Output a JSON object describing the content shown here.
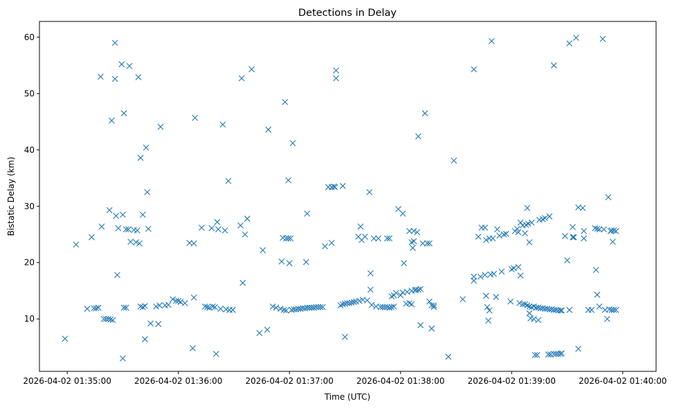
{
  "chart_data": {
    "type": "scatter",
    "title": "Detections in Delay",
    "xlabel": "Time (UTC)",
    "ylabel": "Bistatic Delay (km)",
    "marker": "x",
    "color": "#1f77b4",
    "xlim": [
      -0.25,
      5.3
    ],
    "ylim": [
      0.7,
      62.8
    ],
    "xticks": [
      {
        "value": 0,
        "label": "2026-04-02 01:35:00"
      },
      {
        "value": 1,
        "label": "2026-04-02 01:36:00"
      },
      {
        "value": 2,
        "label": "2026-04-02 01:37:00"
      },
      {
        "value": 3,
        "label": "2026-04-02 01:38:00"
      },
      {
        "value": 4,
        "label": "2026-04-02 01:39:00"
      },
      {
        "value": 5,
        "label": "2026-04-02 01:40:00"
      }
    ],
    "yticks": [
      {
        "value": 10,
        "label": "10"
      },
      {
        "value": 20,
        "label": "20"
      },
      {
        "value": 30,
        "label": "30"
      },
      {
        "value": 40,
        "label": "40"
      },
      {
        "value": 50,
        "label": "50"
      },
      {
        "value": 60,
        "label": "60"
      }
    ],
    "x_units": "minutes after 2026-04-02 01:35:00 UTC",
    "points": [
      [
        -0.02,
        6.5
      ],
      [
        0.08,
        23.2
      ],
      [
        0.18,
        11.8
      ],
      [
        0.22,
        24.5
      ],
      [
        0.24,
        11.9
      ],
      [
        0.26,
        11.9
      ],
      [
        0.28,
        12.0
      ],
      [
        0.3,
        53.0
      ],
      [
        0.31,
        26.4
      ],
      [
        0.33,
        10.0
      ],
      [
        0.35,
        10.0
      ],
      [
        0.37,
        10.0
      ],
      [
        0.38,
        29.3
      ],
      [
        0.39,
        9.9
      ],
      [
        0.4,
        45.2
      ],
      [
        0.41,
        9.8
      ],
      [
        0.43,
        59.0
      ],
      [
        0.43,
        52.6
      ],
      [
        0.44,
        28.3
      ],
      [
        0.45,
        17.8
      ],
      [
        0.46,
        26.1
      ],
      [
        0.49,
        55.2
      ],
      [
        0.5,
        28.5
      ],
      [
        0.51,
        46.5
      ],
      [
        0.5,
        3.0
      ],
      [
        0.51,
        12.0
      ],
      [
        0.53,
        12.0
      ],
      [
        0.53,
        25.9
      ],
      [
        0.55,
        25.9
      ],
      [
        0.56,
        54.9
      ],
      [
        0.57,
        23.7
      ],
      [
        0.6,
        25.8
      ],
      [
        0.62,
        23.6
      ],
      [
        0.63,
        25.7
      ],
      [
        0.65,
        23.4
      ],
      [
        0.64,
        52.9
      ],
      [
        0.66,
        38.6
      ],
      [
        0.66,
        12.2
      ],
      [
        0.68,
        12.1
      ],
      [
        0.68,
        28.5
      ],
      [
        0.7,
        12.3
      ],
      [
        0.7,
        6.4
      ],
      [
        0.72,
        32.5
      ],
      [
        0.71,
        40.4
      ],
      [
        0.73,
        26.0
      ],
      [
        0.75,
        9.2
      ],
      [
        0.8,
        12.2
      ],
      [
        0.83,
        12.4
      ],
      [
        0.82,
        9.1
      ],
      [
        0.84,
        44.1
      ],
      [
        0.88,
        12.4
      ],
      [
        0.91,
        12.5
      ],
      [
        0.95,
        13.5
      ],
      [
        0.98,
        13.2
      ],
      [
        1.0,
        13.2
      ],
      [
        1.02,
        13.0
      ],
      [
        1.06,
        12.8
      ],
      [
        1.1,
        23.5
      ],
      [
        1.14,
        23.4
      ],
      [
        1.13,
        4.8
      ],
      [
        1.14,
        13.8
      ],
      [
        1.15,
        45.7
      ],
      [
        1.21,
        26.2
      ],
      [
        1.24,
        12.2
      ],
      [
        1.26,
        12.1
      ],
      [
        1.28,
        12.0
      ],
      [
        1.3,
        26.1
      ],
      [
        1.31,
        12.2
      ],
      [
        1.33,
        12.1
      ],
      [
        1.34,
        3.8
      ],
      [
        1.35,
        27.2
      ],
      [
        1.36,
        25.9
      ],
      [
        1.38,
        11.8
      ],
      [
        1.4,
        44.5
      ],
      [
        1.42,
        25.7
      ],
      [
        1.43,
        11.7
      ],
      [
        1.45,
        34.5
      ],
      [
        1.46,
        11.6
      ],
      [
        1.49,
        11.6
      ],
      [
        1.56,
        26.6
      ],
      [
        1.57,
        52.7
      ],
      [
        1.58,
        16.4
      ],
      [
        1.6,
        25.0
      ],
      [
        1.62,
        27.8
      ],
      [
        1.66,
        54.3
      ],
      [
        1.73,
        7.5
      ],
      [
        1.76,
        22.2
      ],
      [
        1.8,
        8.1
      ],
      [
        1.81,
        43.6
      ],
      [
        1.85,
        12.2
      ],
      [
        1.88,
        12.0
      ],
      [
        1.92,
        11.8
      ],
      [
        1.93,
        20.2
      ],
      [
        1.95,
        11.6
      ],
      [
        1.97,
        11.5
      ],
      [
        1.94,
        24.4
      ],
      [
        1.96,
        48.5
      ],
      [
        1.97,
        24.3
      ],
      [
        1.99,
        24.3
      ],
      [
        1.99,
        34.6
      ],
      [
        2.01,
        24.3
      ],
      [
        2.0,
        19.9
      ],
      [
        2.02,
        11.6
      ],
      [
        2.04,
        11.7
      ],
      [
        2.03,
        41.2
      ],
      [
        2.06,
        11.7
      ],
      [
        2.08,
        11.8
      ],
      [
        2.1,
        11.8
      ],
      [
        2.12,
        11.9
      ],
      [
        2.14,
        11.9
      ],
      [
        2.16,
        12.0
      ],
      [
        2.15,
        20.1
      ],
      [
        2.16,
        28.7
      ],
      [
        2.18,
        12.0
      ],
      [
        2.2,
        12.0
      ],
      [
        2.22,
        12.0
      ],
      [
        2.24,
        12.1
      ],
      [
        2.26,
        12.1
      ],
      [
        2.28,
        12.1
      ],
      [
        2.3,
        12.1
      ],
      [
        2.32,
        22.9
      ],
      [
        2.35,
        33.4
      ],
      [
        2.38,
        23.5
      ],
      [
        2.38,
        33.4
      ],
      [
        2.4,
        33.5
      ],
      [
        2.41,
        33.4
      ],
      [
        2.42,
        54.1
      ],
      [
        2.42,
        52.7
      ],
      [
        2.46,
        12.4
      ],
      [
        2.48,
        12.6
      ],
      [
        2.5,
        12.7
      ],
      [
        2.48,
        33.6
      ],
      [
        2.5,
        6.8
      ],
      [
        2.52,
        12.8
      ],
      [
        2.54,
        12.8
      ],
      [
        2.56,
        12.9
      ],
      [
        2.58,
        13.0
      ],
      [
        2.6,
        13.1
      ],
      [
        2.62,
        24.6
      ],
      [
        2.63,
        13.2
      ],
      [
        2.65,
        24.0
      ],
      [
        2.64,
        26.4
      ],
      [
        2.66,
        13.4
      ],
      [
        2.68,
        24.6
      ],
      [
        2.7,
        13.3
      ],
      [
        2.72,
        32.5
      ],
      [
        2.73,
        15.2
      ],
      [
        2.73,
        18.1
      ],
      [
        2.74,
        12.5
      ],
      [
        2.76,
        24.3
      ],
      [
        2.78,
        12.2
      ],
      [
        2.8,
        24.3
      ],
      [
        2.82,
        12.1
      ],
      [
        2.84,
        12.1
      ],
      [
        2.86,
        12.1
      ],
      [
        2.88,
        24.3
      ],
      [
        2.88,
        12.1
      ],
      [
        2.9,
        24.3
      ],
      [
        2.9,
        12.0
      ],
      [
        2.92,
        12.1
      ],
      [
        2.94,
        12.2
      ],
      [
        2.92,
        14.0
      ],
      [
        2.94,
        14.2
      ],
      [
        2.96,
        14.6
      ],
      [
        2.98,
        29.5
      ],
      [
        3.0,
        14.2
      ],
      [
        3.02,
        14.7
      ],
      [
        3.02,
        28.7
      ],
      [
        3.03,
        19.9
      ],
      [
        3.05,
        12.7
      ],
      [
        3.06,
        14.8
      ],
      [
        3.08,
        12.8
      ],
      [
        3.08,
        25.6
      ],
      [
        3.1,
        15.0
      ],
      [
        3.1,
        12.6
      ],
      [
        3.1,
        23.6
      ],
      [
        3.11,
        22.6
      ],
      [
        3.12,
        25.6
      ],
      [
        3.12,
        23.8
      ],
      [
        3.13,
        15.1
      ],
      [
        3.14,
        15.2
      ],
      [
        3.15,
        25.4
      ],
      [
        3.16,
        15.2
      ],
      [
        3.18,
        15.3
      ],
      [
        3.16,
        42.4
      ],
      [
        3.18,
        8.9
      ],
      [
        3.2,
        23.4
      ],
      [
        3.22,
        46.5
      ],
      [
        3.24,
        23.4
      ],
      [
        3.26,
        23.4
      ],
      [
        3.26,
        13.1
      ],
      [
        3.28,
        12.4
      ],
      [
        3.28,
        8.3
      ],
      [
        3.3,
        12.1
      ],
      [
        3.3,
        12.4
      ],
      [
        3.43,
        3.3
      ],
      [
        3.48,
        38.1
      ],
      [
        3.56,
        13.5
      ],
      [
        3.66,
        54.3
      ],
      [
        3.66,
        17.5
      ],
      [
        3.66,
        16.8
      ],
      [
        3.7,
        24.6
      ],
      [
        3.72,
        17.5
      ],
      [
        3.73,
        26.2
      ],
      [
        3.76,
        17.8
      ],
      [
        3.76,
        26.2
      ],
      [
        3.77,
        24.0
      ],
      [
        3.77,
        14.1
      ],
      [
        3.78,
        12.1
      ],
      [
        3.79,
        9.7
      ],
      [
        3.8,
        24.3
      ],
      [
        3.8,
        11.5
      ],
      [
        3.81,
        17.9
      ],
      [
        3.82,
        59.3
      ],
      [
        3.83,
        24.3
      ],
      [
        3.84,
        18.0
      ],
      [
        3.86,
        13.9
      ],
      [
        3.87,
        25.9
      ],
      [
        3.89,
        24.8
      ],
      [
        3.91,
        18.4
      ],
      [
        3.93,
        25.0
      ],
      [
        3.95,
        25.1
      ],
      [
        3.99,
        13.1
      ],
      [
        4.0,
        18.8
      ],
      [
        4.02,
        19.0
      ],
      [
        4.03,
        25.6
      ],
      [
        4.05,
        26.0
      ],
      [
        4.06,
        19.2
      ],
      [
        4.06,
        25.4
      ],
      [
        4.07,
        12.8
      ],
      [
        4.08,
        17.7
      ],
      [
        4.08,
        27.1
      ],
      [
        4.1,
        26.6
      ],
      [
        4.1,
        12.6
      ],
      [
        4.12,
        12.6
      ],
      [
        4.12,
        25.2
      ],
      [
        4.13,
        26.7
      ],
      [
        4.14,
        12.4
      ],
      [
        4.14,
        29.7
      ],
      [
        4.15,
        26.9
      ],
      [
        4.16,
        12.2
      ],
      [
        4.16,
        11.0
      ],
      [
        4.16,
        23.6
      ],
      [
        4.17,
        10.1
      ],
      [
        4.18,
        27.1
      ],
      [
        4.18,
        12.1
      ],
      [
        4.2,
        12.2
      ],
      [
        4.2,
        10.0
      ],
      [
        4.22,
        12.0
      ],
      [
        4.21,
        3.6
      ],
      [
        4.23,
        3.6
      ],
      [
        4.24,
        9.8
      ],
      [
        4.24,
        12.0
      ],
      [
        4.25,
        27.6
      ],
      [
        4.26,
        11.9
      ],
      [
        4.28,
        11.9
      ],
      [
        4.28,
        27.7
      ],
      [
        4.3,
        27.9
      ],
      [
        4.3,
        11.8
      ],
      [
        4.32,
        11.8
      ],
      [
        4.33,
        3.7
      ],
      [
        4.34,
        11.7
      ],
      [
        4.35,
        3.7
      ],
      [
        4.36,
        11.7
      ],
      [
        4.34,
        28.2
      ],
      [
        4.38,
        11.6
      ],
      [
        4.38,
        3.8
      ],
      [
        4.4,
        11.6
      ],
      [
        4.4,
        3.8
      ],
      [
        4.42,
        11.5
      ],
      [
        4.42,
        3.8
      ],
      [
        4.44,
        11.5
      ],
      [
        4.44,
        3.8
      ],
      [
        4.45,
        3.9
      ],
      [
        4.38,
        55.0
      ],
      [
        4.45,
        11.5
      ],
      [
        4.48,
        24.7
      ],
      [
        4.5,
        20.4
      ],
      [
        4.52,
        11.6
      ],
      [
        4.52,
        58.9
      ],
      [
        4.55,
        26.3
      ],
      [
        4.55,
        24.5
      ],
      [
        4.56,
        24.5
      ],
      [
        4.58,
        59.9
      ],
      [
        4.6,
        4.7
      ],
      [
        4.6,
        29.8
      ],
      [
        4.64,
        29.7
      ],
      [
        4.65,
        25.6
      ],
      [
        4.65,
        24.3
      ],
      [
        4.69,
        11.6
      ],
      [
        4.72,
        11.6
      ],
      [
        4.75,
        26.1
      ],
      [
        4.76,
        18.7
      ],
      [
        4.77,
        26.0
      ],
      [
        4.77,
        14.3
      ],
      [
        4.79,
        12.2
      ],
      [
        4.79,
        25.9
      ],
      [
        4.82,
        59.7
      ],
      [
        4.83,
        25.9
      ],
      [
        4.84,
        11.6
      ],
      [
        4.86,
        10.0
      ],
      [
        4.87,
        31.6
      ],
      [
        4.88,
        11.7
      ],
      [
        4.89,
        25.6
      ],
      [
        4.9,
        25.7
      ],
      [
        4.9,
        11.6
      ],
      [
        4.92,
        25.7
      ],
      [
        4.92,
        11.6
      ],
      [
        4.91,
        23.7
      ],
      [
        4.94,
        11.6
      ],
      [
        4.94,
        25.6
      ]
    ]
  }
}
